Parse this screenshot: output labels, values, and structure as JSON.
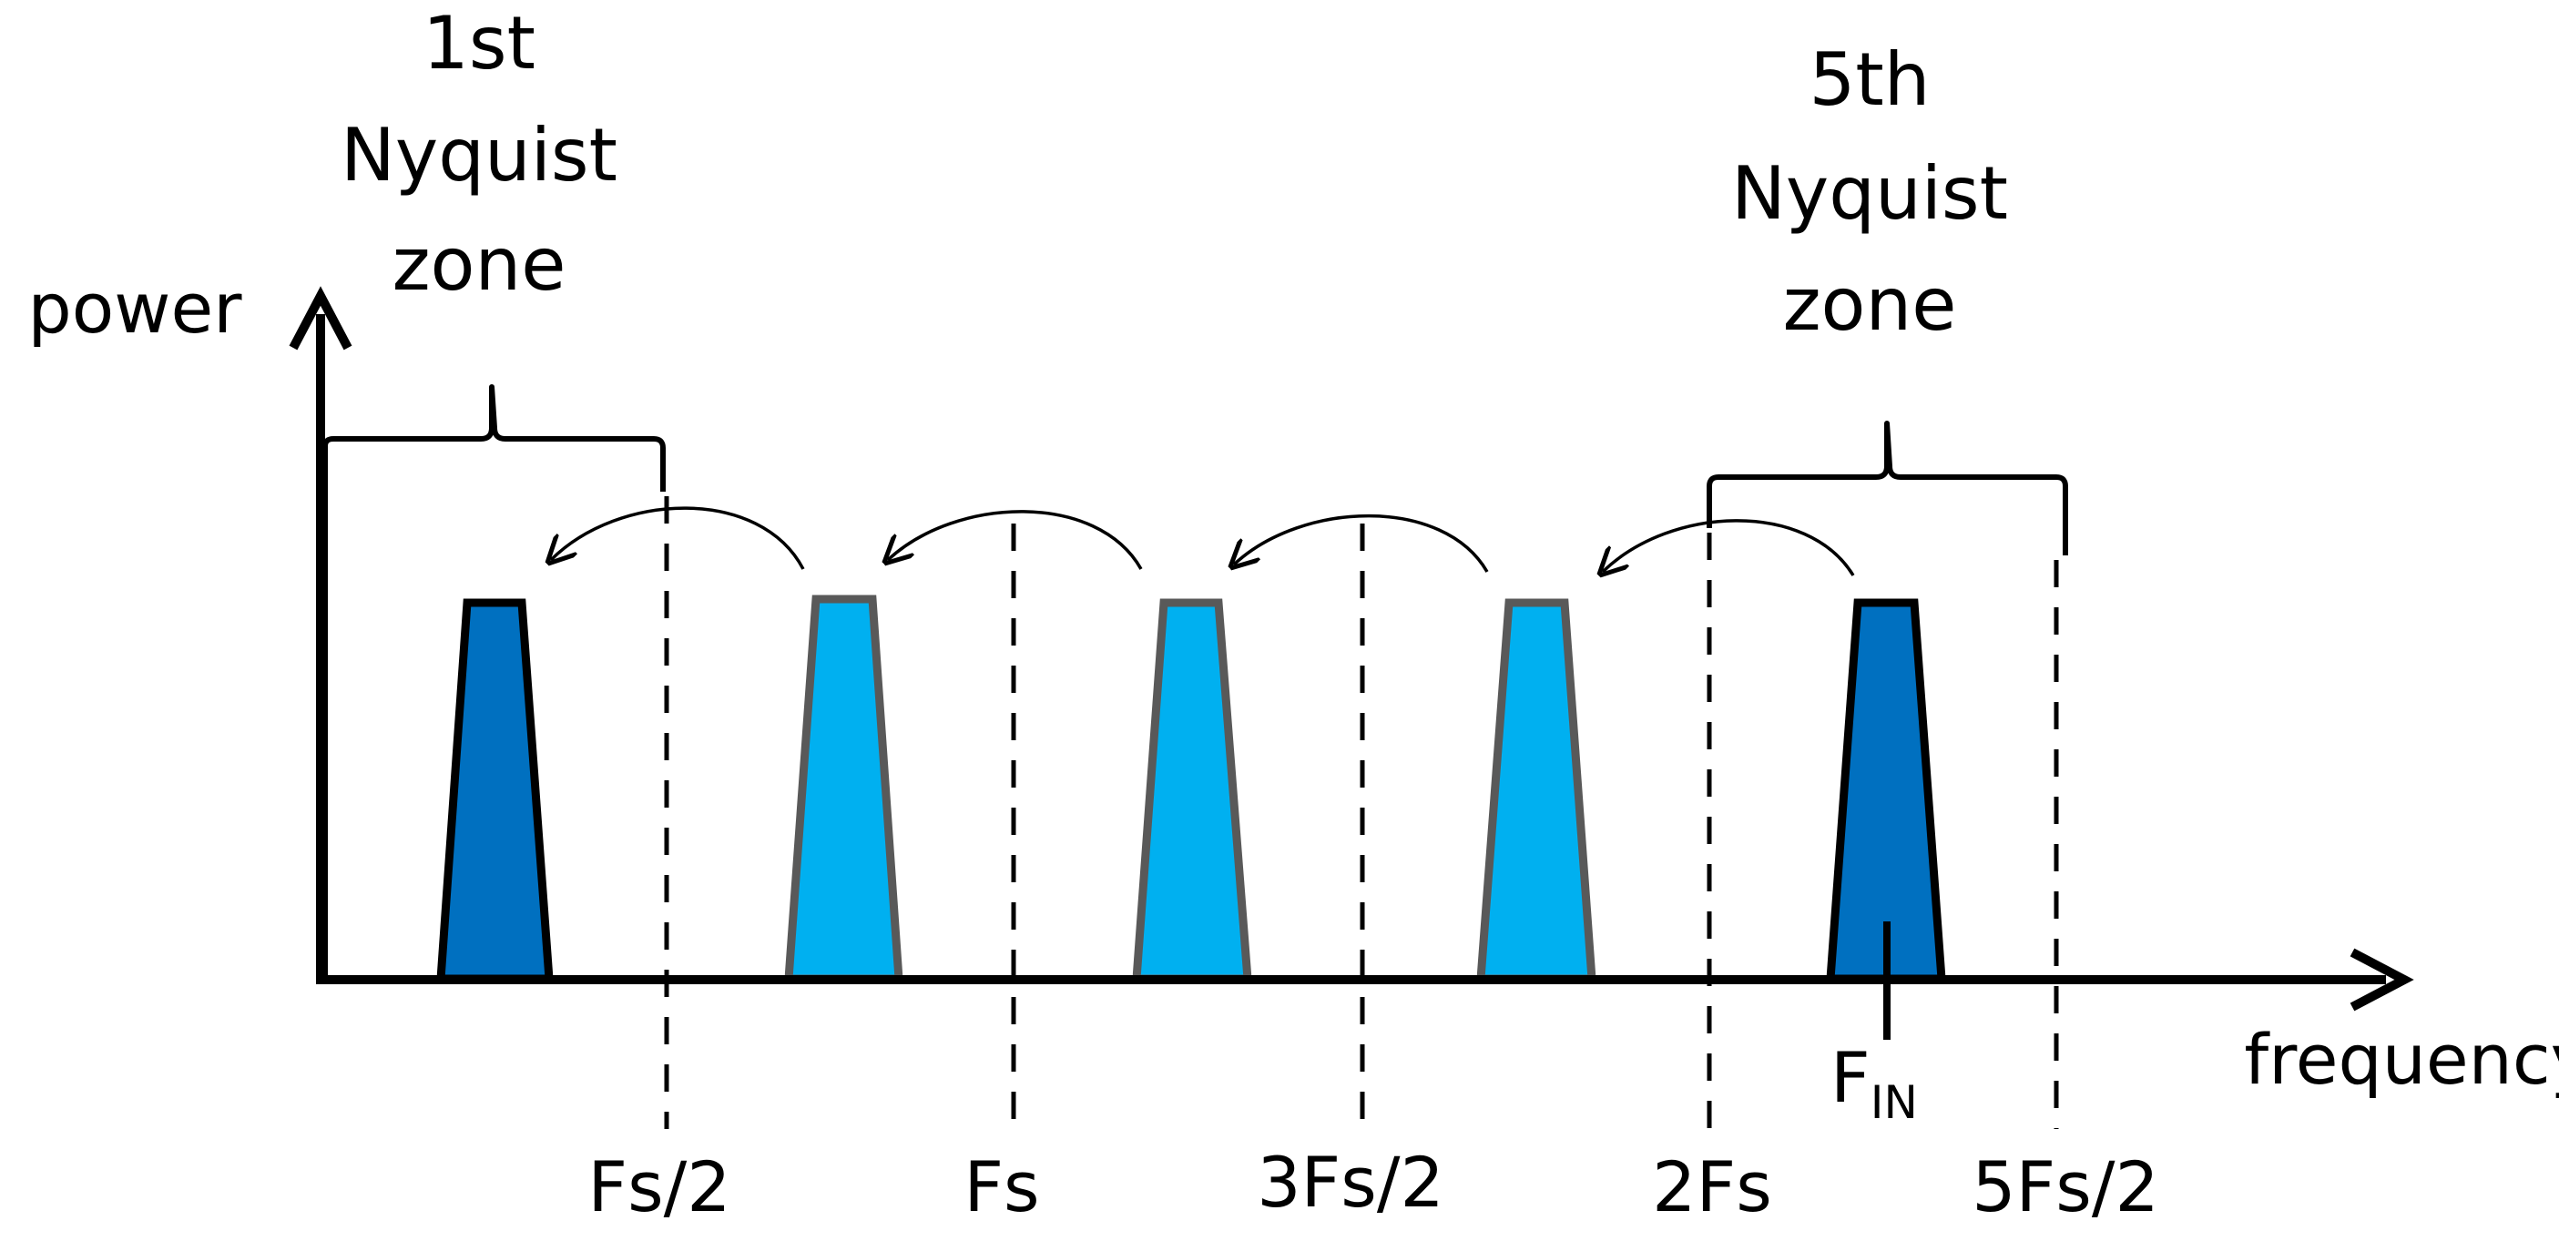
{
  "axes": {
    "y_label": "power",
    "x_label": "frequency"
  },
  "zones": {
    "first": [
      "1st",
      "Nyquist",
      "zone"
    ],
    "fifth": [
      "5th",
      "Nyquist",
      "zone"
    ]
  },
  "tick_labels": [
    "Fs/2",
    "Fs",
    "3Fs/2",
    "2Fs",
    "5Fs/2"
  ],
  "input_label": {
    "main": "F",
    "sub": "IN"
  },
  "colors": {
    "axis": "#000000",
    "signal_fill": "#0070c0",
    "signal_stroke": "#000000",
    "alias_fill": "#00b0f0",
    "alias_stroke": "#595959"
  },
  "signals": [
    {
      "kind": "signal",
      "zone": 1
    },
    {
      "kind": "alias",
      "zone": 2
    },
    {
      "kind": "alias",
      "zone": 3
    },
    {
      "kind": "alias",
      "zone": 4
    },
    {
      "kind": "signal",
      "zone": 5
    }
  ]
}
